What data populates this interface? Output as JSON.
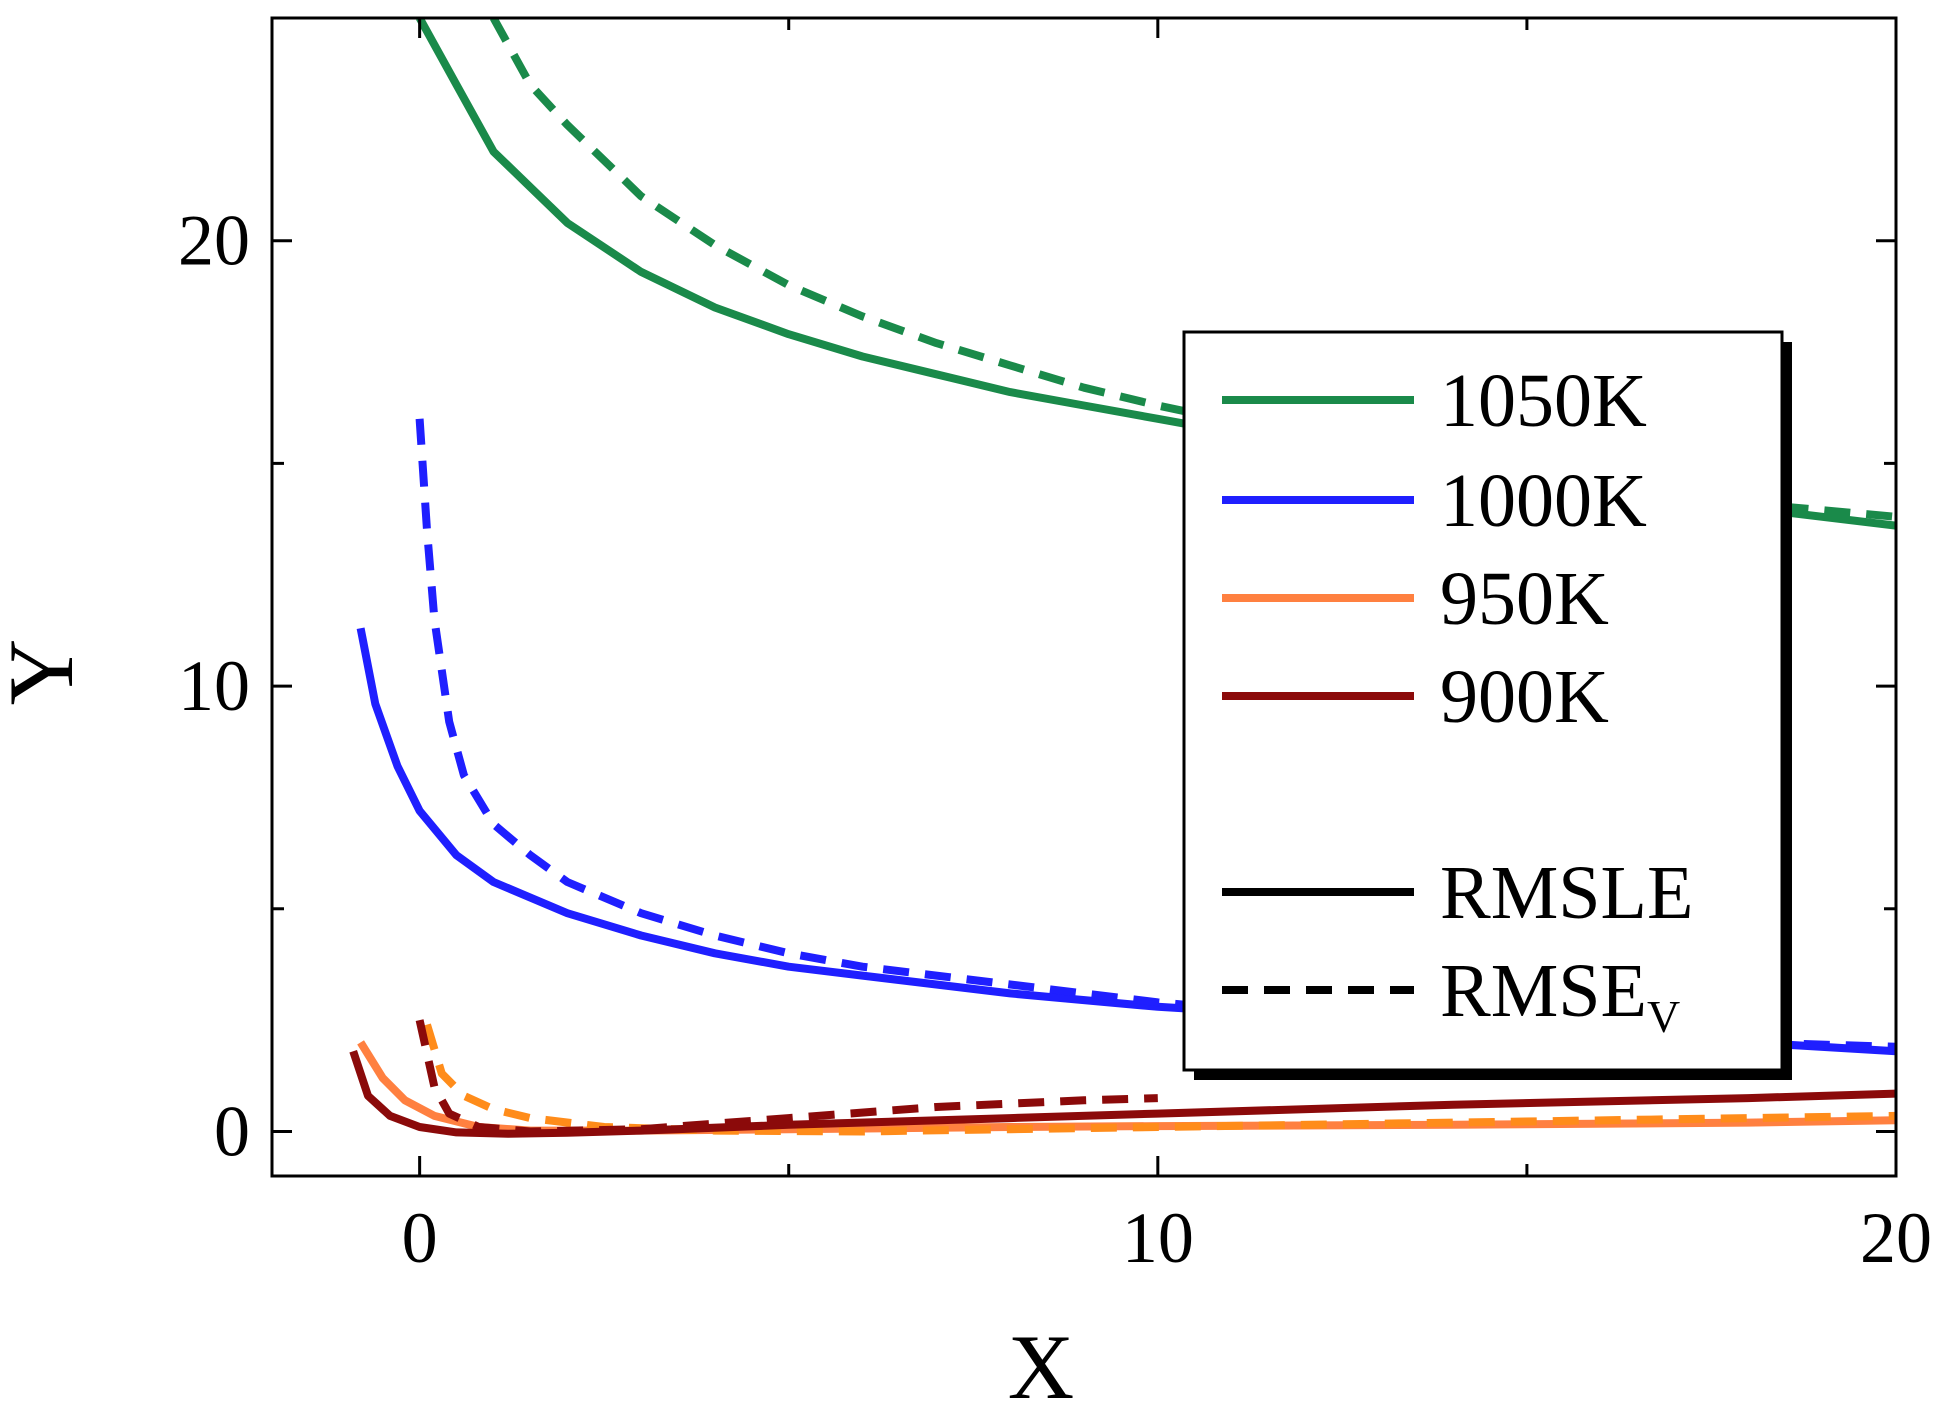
{
  "chart_data": {
    "type": "line",
    "title": "",
    "xlabel": "X",
    "ylabel": "Y",
    "xlim": [
      -2,
      20
    ],
    "ylim": [
      -1,
      25
    ],
    "xticks": [
      0,
      10,
      20
    ],
    "yticks": [
      0,
      10,
      20
    ],
    "xtick_labels": [
      "0",
      "10",
      "20"
    ],
    "ytick_labels": [
      "0",
      "10",
      "20"
    ],
    "x_minor_ticks": [
      5,
      15
    ],
    "y_minor_ticks": [
      5,
      15
    ],
    "grid": false,
    "legend_position": "right",
    "series": [
      {
        "name": "1050K RMSLE",
        "temperature": "1050K",
        "metric": "RMSLE",
        "color": "#1a8a4a",
        "dash": "solid",
        "x": [
          0,
          0.5,
          1,
          1.5,
          2,
          3,
          4,
          5,
          6,
          7,
          8,
          9,
          10,
          12,
          14,
          16,
          18,
          20
        ],
        "y": [
          25,
          23.5,
          22,
          21.2,
          20.4,
          19.3,
          18.5,
          17.9,
          17.4,
          17.0,
          16.6,
          16.3,
          16.0,
          15.4,
          14.9,
          14.4,
          14.0,
          13.6
        ]
      },
      {
        "name": "1050K RMSEV",
        "temperature": "1050K",
        "metric": "RMSEV",
        "color": "#1a8a4a",
        "dash": "dashed",
        "x": [
          1,
          1.5,
          2,
          3,
          4,
          5,
          6,
          7,
          8,
          9,
          10,
          12,
          14,
          16,
          18,
          20
        ],
        "y": [
          25,
          23.5,
          22.6,
          21.0,
          19.9,
          19.0,
          18.3,
          17.7,
          17.2,
          16.7,
          16.3,
          15.6,
          15.0,
          14.5,
          14.1,
          13.8
        ]
      },
      {
        "name": "1000K RMSLE",
        "temperature": "1000K",
        "metric": "RMSLE",
        "color": "#1f1fff",
        "dash": "solid",
        "x": [
          -0.8,
          -0.6,
          -0.3,
          0,
          0.5,
          1,
          2,
          3,
          4,
          5,
          6,
          8,
          10,
          12,
          14,
          16,
          18,
          20
        ],
        "y": [
          11.3,
          9.6,
          8.2,
          7.2,
          6.2,
          5.6,
          4.9,
          4.4,
          4.0,
          3.7,
          3.5,
          3.1,
          2.8,
          2.6,
          2.4,
          2.2,
          2.0,
          1.8
        ]
      },
      {
        "name": "1000K RMSEV",
        "temperature": "1000K",
        "metric": "RMSEV",
        "color": "#1f1fff",
        "dash": "dashed",
        "x": [
          0,
          0.1,
          0.2,
          0.4,
          0.6,
          1,
          1.5,
          2,
          3,
          4,
          5,
          6,
          8,
          10,
          12,
          14,
          16,
          18,
          20
        ],
        "y": [
          16,
          13.5,
          11.5,
          9.2,
          8.0,
          6.9,
          6.2,
          5.6,
          4.9,
          4.4,
          4.0,
          3.7,
          3.3,
          2.9,
          2.6,
          2.4,
          2.2,
          2.0,
          1.9
        ]
      },
      {
        "name": "950K RMSLE",
        "temperature": "950K",
        "metric": "RMSLE",
        "color": "#ff8040",
        "dash": "solid",
        "x": [
          -0.8,
          -0.5,
          -0.2,
          0.2,
          0.8,
          1.5,
          3,
          5,
          8,
          10,
          14,
          18,
          20
        ],
        "y": [
          2.0,
          1.2,
          0.7,
          0.35,
          0.1,
          0.02,
          0.02,
          0.05,
          0.1,
          0.12,
          0.15,
          0.2,
          0.25
        ]
      },
      {
        "name": "950K RMSEV",
        "temperature": "950K",
        "metric": "RMSEV",
        "color": "#ff8c1a",
        "dash": "dashed",
        "x": [
          0.1,
          0.3,
          0.6,
          1,
          1.5,
          2.5,
          4,
          6,
          8,
          10,
          14,
          18,
          20
        ],
        "y": [
          2.4,
          1.3,
          0.8,
          0.5,
          0.3,
          0.1,
          0.02,
          0.0,
          0.05,
          0.1,
          0.2,
          0.3,
          0.35
        ]
      },
      {
        "name": "900K RMSLE",
        "temperature": "900K",
        "metric": "RMSLE",
        "color": "#8b0a0a",
        "dash": "solid",
        "x": [
          -0.9,
          -0.7,
          -0.4,
          0,
          0.5,
          1.2,
          2,
          3,
          5,
          8,
          10,
          14,
          18,
          20
        ],
        "y": [
          1.8,
          0.8,
          0.35,
          0.1,
          -0.02,
          -0.05,
          -0.03,
          0.02,
          0.15,
          0.3,
          0.4,
          0.6,
          0.75,
          0.85
        ]
      },
      {
        "name": "900K RMSEV",
        "temperature": "900K",
        "metric": "RMSEV",
        "color": "#8b0a0a",
        "dash": "dashed",
        "x": [
          0,
          0.2,
          0.4,
          0.8,
          1.5,
          3,
          5,
          7,
          9,
          10
        ],
        "y": [
          2.5,
          1.0,
          0.4,
          0.1,
          0.0,
          0.05,
          0.3,
          0.55,
          0.7,
          0.75
        ]
      }
    ],
    "legend": [
      {
        "label": "1050K",
        "color": "#1a8a4a",
        "dash": "solid",
        "sub": ""
      },
      {
        "label": "1000K",
        "color": "#1f1fff",
        "dash": "solid",
        "sub": ""
      },
      {
        "label": "950K",
        "color": "#ff8040",
        "dash": "solid",
        "sub": ""
      },
      {
        "label": "900K",
        "color": "#8b0a0a",
        "dash": "solid",
        "sub": ""
      },
      {
        "label": "RMSLE",
        "color": "#000000",
        "dash": "solid",
        "sub": ""
      },
      {
        "label": "RMSE",
        "color": "#000000",
        "dash": "dashed",
        "sub": "V"
      }
    ]
  }
}
